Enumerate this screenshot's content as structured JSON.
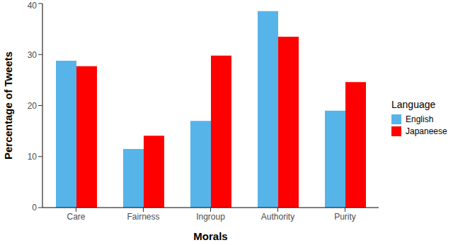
{
  "chart_data": {
    "type": "bar",
    "x_label": "Morals",
    "y_label": "Percentage of Tweets",
    "legend_title": "Language",
    "legend": "right",
    "categories": [
      "Care",
      "Fairness",
      "Ingroup",
      "Authority",
      "Purity"
    ],
    "series": [
      {
        "name": "English",
        "color": "#56b4e9",
        "values": [
          28.8,
          11.5,
          17,
          38.5,
          19
        ]
      },
      {
        "name": "Japaneese",
        "color": "#ff0000",
        "values": [
          27.7,
          14.1,
          29.8,
          33.5,
          24.6
        ]
      }
    ],
    "ylim": [
      0,
      40
    ],
    "yticks": [
      0,
      10,
      20,
      30,
      40
    ],
    "grid": false
  }
}
